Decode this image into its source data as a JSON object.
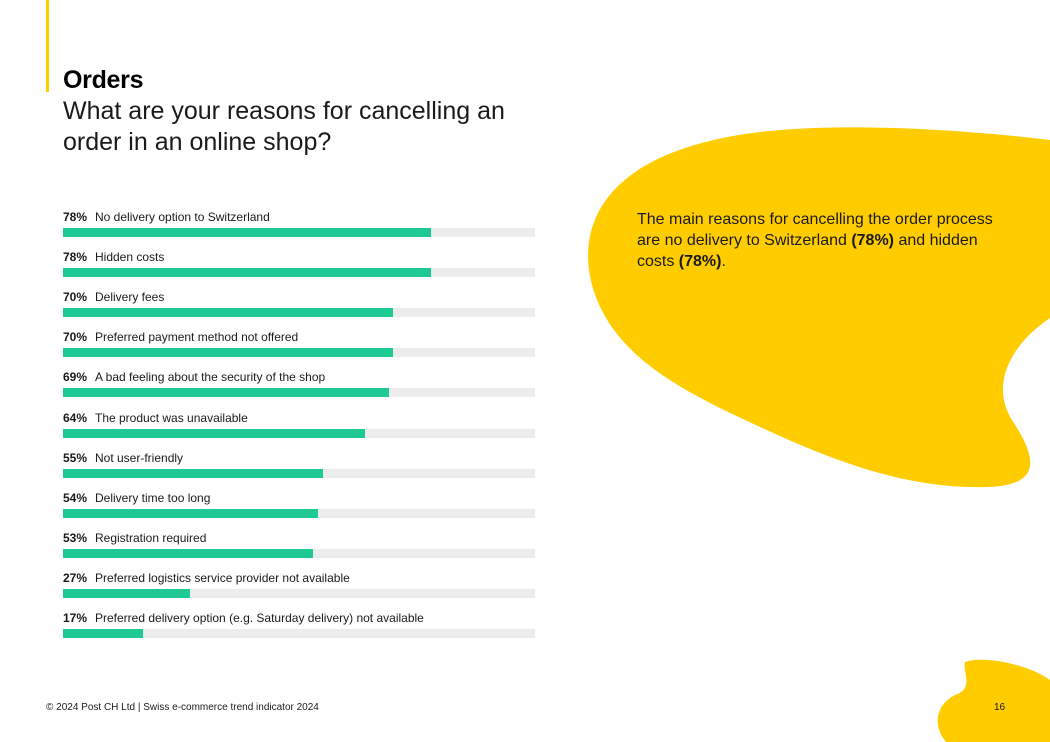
{
  "header": {
    "title": "Orders",
    "subtitle": "What are your reasons for cancelling an order in an online shop?"
  },
  "callout": {
    "part1": "The main reasons for cancelling the order process are no delivery to Switzerland ",
    "bold1": "(78%)",
    "part2": " and hidden costs ",
    "bold2": "(78%)",
    "part3": "."
  },
  "chart_data": {
    "type": "bar",
    "orientation": "horizontal",
    "categories": [
      "No delivery option to Switzerland",
      "Hidden costs",
      "Delivery fees",
      "Preferred payment method not offered",
      "A bad feeling about the security of the shop",
      "The product was unavailable",
      "Not user-friendly",
      "Delivery time too long",
      "Registration required",
      "Preferred logistics service provider not available",
      "Preferred delivery option (e.g. Saturday delivery) not available"
    ],
    "values": [
      78,
      78,
      70,
      70,
      69,
      64,
      55,
      54,
      53,
      27,
      17
    ],
    "value_labels": [
      "78%",
      "78%",
      "70%",
      "70%",
      "69%",
      "64%",
      "55%",
      "54%",
      "53%",
      "27%",
      "17%"
    ],
    "xlim": [
      0,
      100
    ],
    "grid": false,
    "legend": "none"
  },
  "footer": {
    "text": "© 2024 Post CH Ltd | Swiss e-commerce trend indicator 2024",
    "page": "16"
  },
  "colors": {
    "accent_yellow": "#FFCC00",
    "bar_green": "#1EC994",
    "bar_track": "#ECECEC"
  }
}
